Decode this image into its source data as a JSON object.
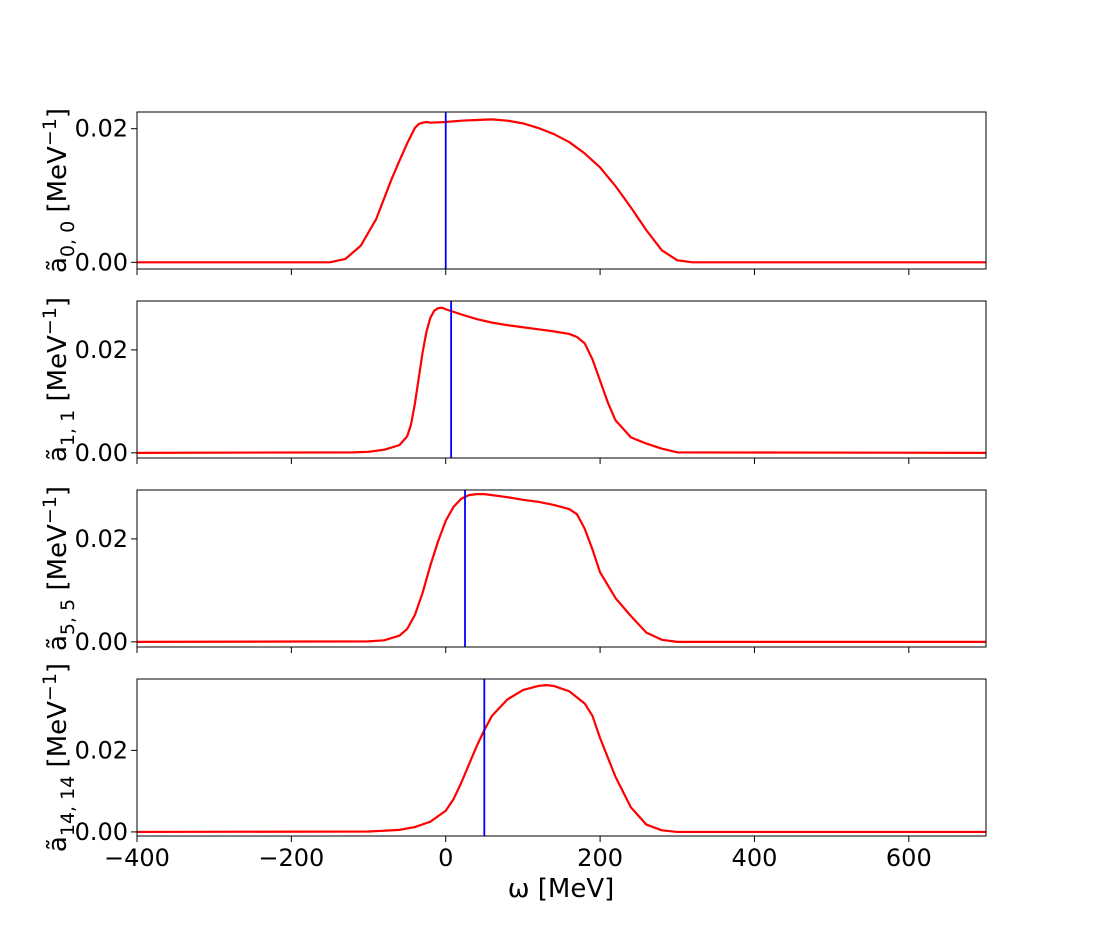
{
  "chart_data": {
    "type": "line",
    "figure": {
      "xlabel": "ω [MeV]",
      "xlim": [
        -400,
        700
      ],
      "xticks": [
        -400,
        -200,
        0,
        200,
        400,
        600
      ],
      "xtick_labels": [
        "−400",
        "−200",
        "0",
        "200",
        "400",
        "600"
      ]
    },
    "panels": [
      {
        "ylabel_main": "ã",
        "ylabel_sub": "0, 0",
        "ylabel_unit": " [MeV",
        "ylabel_exp": "−1",
        "ylabel_close": "]",
        "ylim": [
          -0.001,
          0.0225
        ],
        "yticks": [
          0.0,
          0.02
        ],
        "ytick_labels": [
          "0.00",
          "0.02"
        ],
        "vline_x": 0,
        "series": [
          {
            "name": "spectral function",
            "color": "#ff0000",
            "x": [
              -400,
              -200,
              -150,
              -130,
              -110,
              -90,
              -80,
              -70,
              -60,
              -50,
              -40,
              -35,
              -30,
              -25,
              -20,
              0,
              20,
              40,
              60,
              80,
              100,
              120,
              140,
              160,
              180,
              200,
              220,
              240,
              260,
              280,
              300,
              320,
              400,
              700
            ],
            "y": [
              0.0,
              0.0,
              0.0,
              0.0005,
              0.0025,
              0.0065,
              0.0095,
              0.0125,
              0.0152,
              0.0178,
              0.0201,
              0.0207,
              0.0209,
              0.021,
              0.0209,
              0.021,
              0.0212,
              0.0213,
              0.0214,
              0.0212,
              0.0208,
              0.0201,
              0.0192,
              0.018,
              0.0163,
              0.0142,
              0.0114,
              0.0082,
              0.0048,
              0.0018,
              0.0003,
              0.0,
              0.0,
              0.0
            ]
          },
          {
            "name": "marker",
            "color": "#0000ff",
            "x": [
              0,
              0
            ],
            "y": [
              -0.001,
              0.0225
            ]
          }
        ]
      },
      {
        "ylabel_main": "ã",
        "ylabel_sub": "1, 1",
        "ylabel_unit": " [MeV",
        "ylabel_exp": "−1",
        "ylabel_close": "]",
        "ylim": [
          -0.001,
          0.0295
        ],
        "yticks": [
          0.0,
          0.02
        ],
        "ytick_labels": [
          "0.00",
          "0.02"
        ],
        "vline_x": 7,
        "series": [
          {
            "name": "spectral function",
            "color": "#ff0000",
            "x": [
              -400,
              -120,
              -100,
              -80,
              -60,
              -50,
              -45,
              -40,
              -35,
              -30,
              -25,
              -20,
              -15,
              -10,
              -5,
              0,
              20,
              40,
              60,
              80,
              100,
              120,
              140,
              160,
              170,
              180,
              190,
              200,
              210,
              220,
              240,
              260,
              280,
              300,
              700
            ],
            "y": [
              0.0,
              0.0001,
              0.0002,
              0.0006,
              0.0015,
              0.0032,
              0.0055,
              0.0095,
              0.0145,
              0.0195,
              0.0235,
              0.0262,
              0.0276,
              0.0281,
              0.0282,
              0.0279,
              0.0269,
              0.026,
              0.0253,
              0.0248,
              0.0244,
              0.024,
              0.0236,
              0.0231,
              0.0225,
              0.0213,
              0.0182,
              0.014,
              0.0098,
              0.0063,
              0.003,
              0.0018,
              0.0008,
              0.0001,
              0.0
            ]
          },
          {
            "name": "marker",
            "color": "#0000ff",
            "x": [
              7,
              7
            ],
            "y": [
              -0.001,
              0.0295
            ]
          }
        ]
      },
      {
        "ylabel_main": "ã",
        "ylabel_sub": "5, 5",
        "ylabel_unit": " [MeV",
        "ylabel_exp": "−1",
        "ylabel_close": "]",
        "ylim": [
          -0.001,
          0.0295
        ],
        "yticks": [
          0.0,
          0.02
        ],
        "ytick_labels": [
          "0.00",
          "0.02"
        ],
        "vline_x": 25,
        "series": [
          {
            "name": "spectral function",
            "color": "#ff0000",
            "x": [
              -400,
              -100,
              -80,
              -60,
              -50,
              -40,
              -30,
              -20,
              -10,
              0,
              10,
              20,
              30,
              40,
              50,
              60,
              80,
              100,
              120,
              140,
              160,
              170,
              180,
              190,
              200,
              220,
              240,
              260,
              280,
              300,
              700
            ],
            "y": [
              0.0,
              0.0001,
              0.0003,
              0.0012,
              0.0025,
              0.0052,
              0.0095,
              0.0148,
              0.0195,
              0.0235,
              0.0262,
              0.0278,
              0.0285,
              0.0287,
              0.0287,
              0.0285,
              0.0281,
              0.0276,
              0.0272,
              0.0266,
              0.0258,
              0.0248,
              0.022,
              0.018,
              0.0135,
              0.0085,
              0.005,
              0.0018,
              0.0004,
              0.0,
              0.0
            ]
          },
          {
            "name": "marker",
            "color": "#0000ff",
            "x": [
              25,
              25
            ],
            "y": [
              -0.001,
              0.0295
            ]
          }
        ]
      },
      {
        "ylabel_main": "ã",
        "ylabel_sub": "14, 14",
        "ylabel_unit": " [MeV",
        "ylabel_exp": "−1",
        "ylabel_close": "]",
        "ylim": [
          -0.001,
          0.0375
        ],
        "yticks": [
          0.0,
          0.02
        ],
        "ytick_labels": [
          "0.00",
          "0.02"
        ],
        "vline_x": 50,
        "series": [
          {
            "name": "spectral function",
            "color": "#ff0000",
            "x": [
              -400,
              -100,
              -60,
              -40,
              -20,
              0,
              10,
              20,
              30,
              40,
              50,
              60,
              80,
              100,
              120,
              130,
              140,
              160,
              180,
              190,
              200,
              220,
              240,
              260,
              280,
              300,
              700
            ],
            "y": [
              0.0,
              0.0001,
              0.0005,
              0.0012,
              0.0025,
              0.0052,
              0.008,
              0.012,
              0.0165,
              0.021,
              0.025,
              0.0285,
              0.0325,
              0.0348,
              0.0358,
              0.036,
              0.0358,
              0.0345,
              0.0315,
              0.0285,
              0.023,
              0.0135,
              0.006,
              0.0018,
              0.0004,
              0.0,
              0.0
            ]
          },
          {
            "name": "marker",
            "color": "#0000ff",
            "x": [
              50,
              50
            ],
            "y": [
              -0.001,
              0.0375
            ]
          }
        ]
      }
    ]
  }
}
